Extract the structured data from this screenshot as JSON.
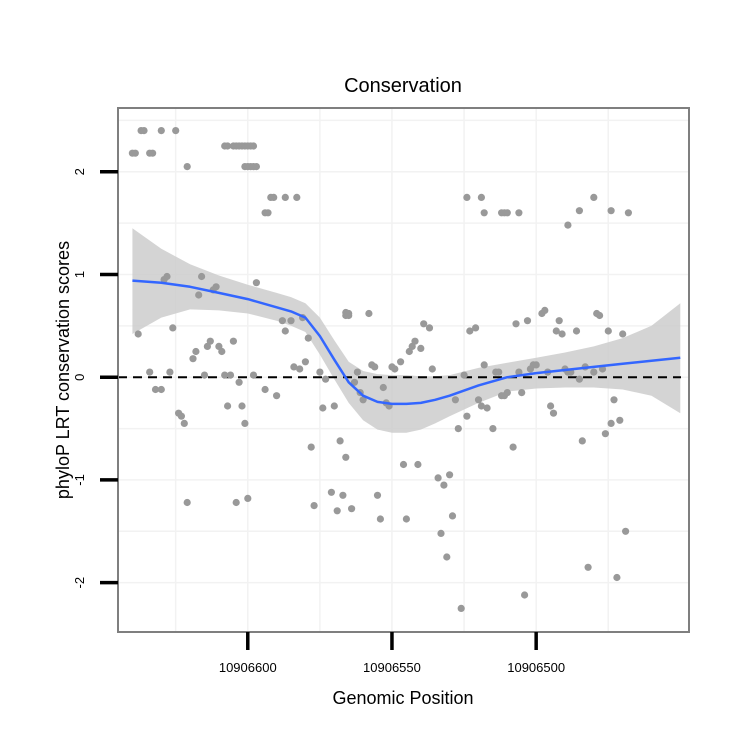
{
  "chart_data": {
    "type": "scatter",
    "title": "Conservation",
    "xlabel": "Genomic Position",
    "ylabel": "phyloP LRT conservation scores",
    "x_reversed": true,
    "xlim": [
      10906645,
      10906447
    ],
    "ylim": [
      -2.48,
      2.62
    ],
    "x_ticks": [
      10906600,
      10906550,
      10906500
    ],
    "y_ticks": [
      -2,
      -1,
      0,
      1,
      2
    ],
    "reference_line_y": 0,
    "grid": true,
    "colors": {
      "points": "#999999",
      "smooth_line": "#3366FF",
      "ribbon": "#cccccc",
      "panel_border": "#7f7f7f",
      "grid": "#f2f2f2"
    },
    "points": [
      [
        10906640,
        2.18
      ],
      [
        10906639,
        2.18
      ],
      [
        10906637,
        2.4
      ],
      [
        10906636,
        2.4
      ],
      [
        10906634,
        2.18
      ],
      [
        10906633,
        2.18
      ],
      [
        10906630,
        2.4
      ],
      [
        10906625,
        2.4
      ],
      [
        10906621,
        2.05
      ],
      [
        10906608,
        2.25
      ],
      [
        10906607,
        2.25
      ],
      [
        10906605,
        2.25
      ],
      [
        10906604,
        2.25
      ],
      [
        10906603,
        2.25
      ],
      [
        10906602,
        2.25
      ],
      [
        10906601,
        2.25
      ],
      [
        10906600,
        2.25
      ],
      [
        10906599,
        2.25
      ],
      [
        10906598,
        2.25
      ],
      [
        10906601,
        2.05
      ],
      [
        10906600,
        2.05
      ],
      [
        10906599,
        2.05
      ],
      [
        10906598,
        2.05
      ],
      [
        10906597,
        2.05
      ],
      [
        10906594,
        1.6
      ],
      [
        10906593,
        1.6
      ],
      [
        10906592,
        1.75
      ],
      [
        10906591,
        1.75
      ],
      [
        10906587,
        1.75
      ],
      [
        10906583,
        1.75
      ],
      [
        10906566,
        0.63
      ],
      [
        10906566,
        0.6
      ],
      [
        10906565,
        0.62
      ],
      [
        10906565,
        0.6
      ],
      [
        10906524,
        1.75
      ],
      [
        10906519,
        1.75
      ],
      [
        10906518,
        1.6
      ],
      [
        10906512,
        1.6
      ],
      [
        10906511,
        1.6
      ],
      [
        10906510,
        1.6
      ],
      [
        10906506,
        1.6
      ],
      [
        10906489,
        1.48
      ],
      [
        10906485,
        1.62
      ],
      [
        10906480,
        1.75
      ],
      [
        10906474,
        1.62
      ],
      [
        10906468,
        1.6
      ],
      [
        10906638,
        0.42
      ],
      [
        10906634,
        0.05
      ],
      [
        10906632,
        -0.12
      ],
      [
        10906630,
        -0.12
      ],
      [
        10906629,
        0.95
      ],
      [
        10906628,
        0.98
      ],
      [
        10906627,
        0.05
      ],
      [
        10906626,
        0.48
      ],
      [
        10906624,
        -0.35
      ],
      [
        10906623,
        -0.38
      ],
      [
        10906622,
        -0.45
      ],
      [
        10906621,
        -1.22
      ],
      [
        10906619,
        0.18
      ],
      [
        10906618,
        0.25
      ],
      [
        10906617,
        0.8
      ],
      [
        10906616,
        0.98
      ],
      [
        10906615,
        0.02
      ],
      [
        10906614,
        0.3
      ],
      [
        10906613,
        0.35
      ],
      [
        10906612,
        0.85
      ],
      [
        10906611,
        0.88
      ],
      [
        10906610,
        0.3
      ],
      [
        10906609,
        0.25
      ],
      [
        10906608,
        0.02
      ],
      [
        10906607,
        -0.28
      ],
      [
        10906606,
        0.02
      ],
      [
        10906605,
        0.35
      ],
      [
        10906604,
        -1.22
      ],
      [
        10906603,
        -0.05
      ],
      [
        10906602,
        -0.28
      ],
      [
        10906601,
        -0.45
      ],
      [
        10906600,
        -1.18
      ],
      [
        10906598,
        0.02
      ],
      [
        10906597,
        0.92
      ],
      [
        10906594,
        -0.12
      ],
      [
        10906590,
        -0.18
      ],
      [
        10906588,
        0.55
      ],
      [
        10906587,
        0.45
      ],
      [
        10906585,
        0.55
      ],
      [
        10906584,
        0.1
      ],
      [
        10906582,
        0.08
      ],
      [
        10906581,
        0.58
      ],
      [
        10906580,
        0.15
      ],
      [
        10906579,
        0.38
      ],
      [
        10906578,
        -0.68
      ],
      [
        10906577,
        -1.25
      ],
      [
        10906575,
        0.05
      ],
      [
        10906574,
        -0.3
      ],
      [
        10906573,
        -0.02
      ],
      [
        10906571,
        -1.12
      ],
      [
        10906570,
        -0.28
      ],
      [
        10906569,
        -1.3
      ],
      [
        10906568,
        -0.62
      ],
      [
        10906567,
        -1.15
      ],
      [
        10906566,
        -0.78
      ],
      [
        10906564,
        -1.28
      ],
      [
        10906563,
        -0.05
      ],
      [
        10906562,
        0.05
      ],
      [
        10906561,
        -0.15
      ],
      [
        10906560,
        -0.22
      ],
      [
        10906558,
        0.62
      ],
      [
        10906557,
        0.12
      ],
      [
        10906556,
        0.1
      ],
      [
        10906555,
        -1.15
      ],
      [
        10906554,
        -1.38
      ],
      [
        10906553,
        -0.1
      ],
      [
        10906552,
        -0.25
      ],
      [
        10906551,
        -0.28
      ],
      [
        10906550,
        0.1
      ],
      [
        10906549,
        0.08
      ],
      [
        10906547,
        0.15
      ],
      [
        10906546,
        -0.85
      ],
      [
        10906545,
        -1.38
      ],
      [
        10906544,
        0.25
      ],
      [
        10906543,
        0.3
      ],
      [
        10906542,
        0.35
      ],
      [
        10906541,
        -0.85
      ],
      [
        10906540,
        0.28
      ],
      [
        10906539,
        0.52
      ],
      [
        10906537,
        0.48
      ],
      [
        10906536,
        0.08
      ],
      [
        10906534,
        -0.98
      ],
      [
        10906533,
        -1.52
      ],
      [
        10906532,
        -1.05
      ],
      [
        10906531,
        -1.75
      ],
      [
        10906530,
        -0.95
      ],
      [
        10906529,
        -1.35
      ],
      [
        10906528,
        -0.22
      ],
      [
        10906527,
        -0.5
      ],
      [
        10906526,
        -2.25
      ],
      [
        10906525,
        0.02
      ],
      [
        10906524,
        -0.38
      ],
      [
        10906523,
        0.45
      ],
      [
        10906521,
        0.48
      ],
      [
        10906520,
        -0.22
      ],
      [
        10906519,
        -0.28
      ],
      [
        10906518,
        0.12
      ],
      [
        10906517,
        -0.3
      ],
      [
        10906515,
        -0.5
      ],
      [
        10906514,
        0.05
      ],
      [
        10906513,
        0.05
      ],
      [
        10906512,
        -0.18
      ],
      [
        10906511,
        -0.18
      ],
      [
        10906510,
        -0.15
      ],
      [
        10906508,
        -0.68
      ],
      [
        10906507,
        0.52
      ],
      [
        10906506,
        0.05
      ],
      [
        10906505,
        -0.15
      ],
      [
        10906504,
        -2.12
      ],
      [
        10906503,
        0.55
      ],
      [
        10906502,
        0.08
      ],
      [
        10906501,
        0.12
      ],
      [
        10906500,
        0.12
      ],
      [
        10906498,
        0.62
      ],
      [
        10906497,
        0.65
      ],
      [
        10906496,
        0.05
      ],
      [
        10906495,
        -0.28
      ],
      [
        10906494,
        -0.35
      ],
      [
        10906493,
        0.45
      ],
      [
        10906492,
        0.55
      ],
      [
        10906491,
        0.42
      ],
      [
        10906490,
        0.08
      ],
      [
        10906489,
        0.05
      ],
      [
        10906488,
        0.05
      ],
      [
        10906486,
        0.45
      ],
      [
        10906485,
        -0.02
      ],
      [
        10906484,
        -0.62
      ],
      [
        10906483,
        0.1
      ],
      [
        10906482,
        -1.85
      ],
      [
        10906480,
        0.05
      ],
      [
        10906479,
        0.62
      ],
      [
        10906478,
        0.6
      ],
      [
        10906477,
        0.08
      ],
      [
        10906476,
        -0.55
      ],
      [
        10906475,
        0.45
      ],
      [
        10906474,
        -0.45
      ],
      [
        10906473,
        -0.22
      ],
      [
        10906472,
        -1.95
      ],
      [
        10906471,
        -0.42
      ],
      [
        10906470,
        0.42
      ],
      [
        10906469,
        -1.5
      ]
    ],
    "smooth": {
      "x": [
        10906640,
        10906630,
        10906620,
        10906610,
        10906600,
        10906590,
        10906585,
        10906580,
        10906575,
        10906570,
        10906565,
        10906560,
        10906555,
        10906550,
        10906545,
        10906540,
        10906535,
        10906530,
        10906520,
        10906510,
        10906500,
        10906490,
        10906480,
        10906470,
        10906460,
        10906450
      ],
      "y": [
        0.94,
        0.92,
        0.88,
        0.82,
        0.76,
        0.68,
        0.64,
        0.58,
        0.4,
        0.17,
        -0.05,
        -0.18,
        -0.24,
        -0.26,
        -0.26,
        -0.25,
        -0.22,
        -0.18,
        -0.08,
        0.0,
        0.04,
        0.07,
        0.1,
        0.13,
        0.16,
        0.19
      ],
      "lower": [
        0.42,
        0.58,
        0.66,
        0.65,
        0.62,
        0.55,
        0.5,
        0.44,
        0.22,
        -0.02,
        -0.25,
        -0.42,
        -0.51,
        -0.54,
        -0.54,
        -0.51,
        -0.45,
        -0.38,
        -0.25,
        -0.14,
        -0.11,
        -0.1,
        -0.1,
        -0.12,
        -0.18,
        -0.35
      ],
      "upper": [
        1.45,
        1.25,
        1.1,
        0.99,
        0.9,
        0.82,
        0.78,
        0.72,
        0.58,
        0.36,
        0.15,
        0.06,
        0.03,
        0.02,
        0.02,
        0.01,
        0.01,
        0.02,
        0.09,
        0.14,
        0.19,
        0.24,
        0.3,
        0.38,
        0.5,
        0.72
      ]
    }
  }
}
